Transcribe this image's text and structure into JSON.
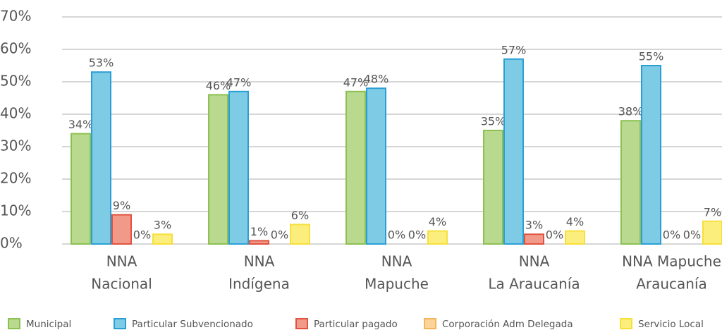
{
  "chart_data": {
    "type": "bar",
    "categories": [
      [
        "NNA",
        "Nacional"
      ],
      [
        "NNA",
        "Indígena"
      ],
      [
        "NNA",
        "Mapuche"
      ],
      [
        "NNA",
        "La Araucanía"
      ],
      [
        "NNA Mapuche",
        "Araucanía"
      ]
    ],
    "series": [
      {
        "name": "Municipal",
        "color": "#b9d98e",
        "values": [
          34,
          46,
          47,
          35,
          38
        ],
        "value_labels": [
          "34%",
          "46%",
          "47%",
          "35%",
          "38%"
        ]
      },
      {
        "name": "Particular Subvencionado",
        "color": "#7ecbe6",
        "values": [
          53,
          47,
          48,
          57,
          55
        ],
        "value_labels": [
          "53%",
          "47%",
          "48%",
          "57%",
          "55%"
        ]
      },
      {
        "name": "Particular pagado",
        "color": "#f19a8a",
        "values": [
          9,
          1,
          0,
          3,
          0
        ],
        "value_labels": [
          "9%",
          "1%",
          "0%",
          "3%",
          "0%"
        ]
      },
      {
        "name": "Corporación Adm Delegada",
        "color": "#fcd49a",
        "values": [
          0,
          0,
          0,
          0,
          0
        ],
        "value_labels": [
          "0%",
          "0%",
          "0%",
          "0%",
          "0%"
        ]
      },
      {
        "name": "Servicio Local",
        "color": "#fcee7c",
        "values": [
          3,
          6,
          4,
          4,
          7
        ],
        "value_labels": [
          "3%",
          "6%",
          "4%",
          "4%",
          "7%"
        ]
      }
    ],
    "ylim": [
      0,
      70
    ],
    "yticks": [
      {
        "value": 0,
        "label": "0%"
      },
      {
        "value": 10,
        "label": "10%"
      },
      {
        "value": 20,
        "label": "20%"
      },
      {
        "value": 30,
        "label": "30%"
      },
      {
        "value": 40,
        "label": "40%"
      },
      {
        "value": 50,
        "label": "50%"
      },
      {
        "value": 60,
        "label": "60%"
      },
      {
        "value": 70,
        "label": "70%"
      }
    ],
    "grid": true,
    "legend": "bottom"
  }
}
